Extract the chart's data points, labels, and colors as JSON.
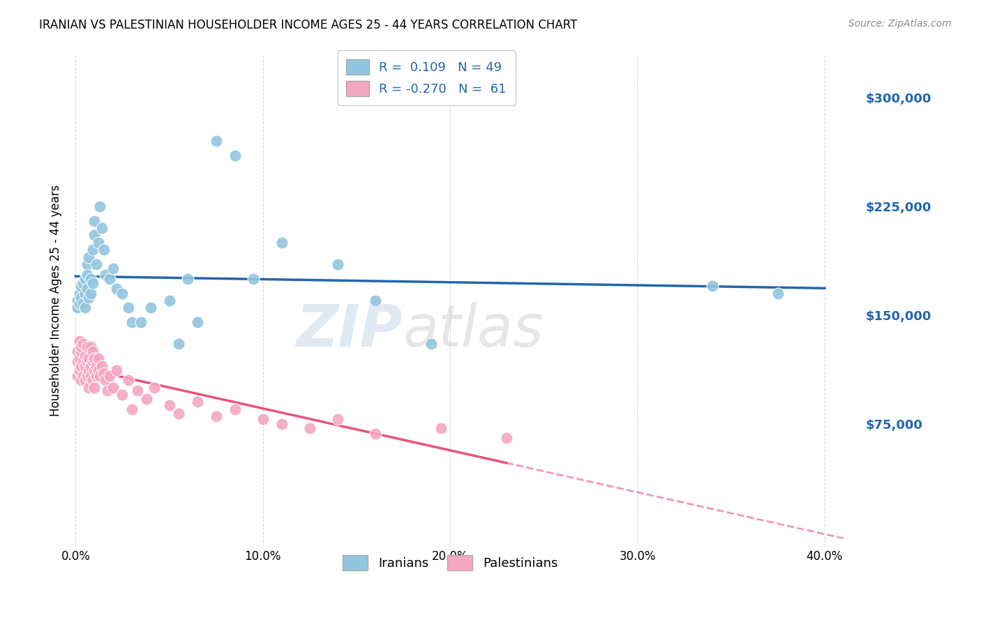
{
  "title": "IRANIAN VS PALESTINIAN HOUSEHOLDER INCOME AGES 25 - 44 YEARS CORRELATION CHART",
  "source": "Source: ZipAtlas.com",
  "ylabel": "Householder Income Ages 25 - 44 years",
  "ylabel_ticks": [
    "$75,000",
    "$150,000",
    "$225,000",
    "$300,000"
  ],
  "ylabel_vals": [
    75000,
    150000,
    225000,
    300000
  ],
  "xlabel_ticks": [
    "0.0%",
    "10.0%",
    "20.0%",
    "30.0%",
    "40.0%"
  ],
  "xlabel_vals": [
    0.0,
    0.1,
    0.2,
    0.3,
    0.4
  ],
  "ylim": [
    -10000,
    330000
  ],
  "xlim": [
    -0.003,
    0.42
  ],
  "legend_R1": "R =  0.109",
  "legend_N1": "N = 49",
  "legend_R2": "R = -0.270",
  "legend_N2": "N =  61",
  "blue_color": "#92c5de",
  "pink_color": "#f4a6c0",
  "blue_line_color": "#2166ac",
  "pink_line_color": "#e8537a",
  "watermark_text": "ZIP",
  "watermark_text2": "atlas",
  "iranians_label": "Iranians",
  "palestinians_label": "Palestinians",
  "iranian_x": [
    0.001,
    0.001,
    0.002,
    0.002,
    0.003,
    0.003,
    0.004,
    0.004,
    0.005,
    0.005,
    0.005,
    0.006,
    0.006,
    0.006,
    0.007,
    0.007,
    0.008,
    0.008,
    0.009,
    0.009,
    0.01,
    0.01,
    0.011,
    0.012,
    0.013,
    0.014,
    0.015,
    0.016,
    0.018,
    0.02,
    0.022,
    0.025,
    0.028,
    0.03,
    0.035,
    0.04,
    0.05,
    0.055,
    0.06,
    0.065,
    0.075,
    0.085,
    0.095,
    0.11,
    0.14,
    0.16,
    0.19,
    0.34,
    0.375
  ],
  "iranian_y": [
    160000,
    155000,
    165000,
    158000,
    170000,
    162000,
    172000,
    158000,
    165000,
    175000,
    155000,
    185000,
    168000,
    178000,
    190000,
    162000,
    175000,
    165000,
    195000,
    172000,
    215000,
    205000,
    185000,
    200000,
    225000,
    210000,
    195000,
    178000,
    175000,
    182000,
    168000,
    165000,
    155000,
    145000,
    145000,
    155000,
    160000,
    130000,
    175000,
    145000,
    270000,
    260000,
    175000,
    200000,
    185000,
    160000,
    130000,
    170000,
    165000
  ],
  "palestinian_x": [
    0.001,
    0.001,
    0.001,
    0.002,
    0.002,
    0.002,
    0.003,
    0.003,
    0.003,
    0.003,
    0.004,
    0.004,
    0.004,
    0.005,
    0.005,
    0.005,
    0.006,
    0.006,
    0.006,
    0.007,
    0.007,
    0.007,
    0.008,
    0.008,
    0.008,
    0.009,
    0.009,
    0.009,
    0.01,
    0.01,
    0.01,
    0.011,
    0.011,
    0.012,
    0.012,
    0.013,
    0.014,
    0.015,
    0.016,
    0.017,
    0.018,
    0.02,
    0.022,
    0.025,
    0.028,
    0.03,
    0.033,
    0.038,
    0.042,
    0.05,
    0.055,
    0.065,
    0.075,
    0.085,
    0.1,
    0.11,
    0.125,
    0.14,
    0.16,
    0.195,
    0.23
  ],
  "palestinian_y": [
    125000,
    118000,
    108000,
    132000,
    120000,
    112000,
    125000,
    115000,
    105000,
    128000,
    118000,
    108000,
    130000,
    115000,
    105000,
    122000,
    118000,
    108000,
    128000,
    112000,
    120000,
    100000,
    128000,
    115000,
    108000,
    118000,
    105000,
    125000,
    112000,
    120000,
    100000,
    115000,
    108000,
    112000,
    120000,
    108000,
    115000,
    110000,
    105000,
    98000,
    108000,
    100000,
    112000,
    95000,
    105000,
    85000,
    98000,
    92000,
    100000,
    88000,
    82000,
    90000,
    80000,
    85000,
    78000,
    75000,
    72000,
    78000,
    68000,
    72000,
    65000
  ]
}
